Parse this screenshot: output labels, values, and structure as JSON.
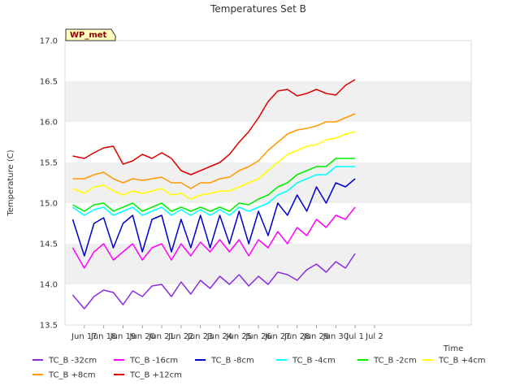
{
  "chart_data": {
    "type": "line",
    "title": "Temperatures Set B",
    "xlabel": "Time",
    "ylabel": "Temperature (C)",
    "ylim": [
      13.5,
      17.0
    ],
    "xlim": [
      0,
      21
    ],
    "yticks": [
      "13.5",
      "14.0",
      "14.5",
      "15.0",
      "15.5",
      "16.0",
      "16.5",
      "17.0"
    ],
    "xticks": [
      "Jun 17",
      "Jun 18",
      "Jun 19",
      "Jun 20",
      "Jun 21",
      "Jun 22",
      "Jun 23",
      "Jun 24",
      "Jun 25",
      "Jun 26",
      "Jun 27",
      "Jun 28",
      "Jun 29",
      "Jun 30",
      "Jul 1",
      "Jul 2"
    ],
    "xtick_positions": [
      1,
      2,
      3,
      4,
      5,
      6,
      7,
      8,
      9,
      10,
      11,
      12,
      13,
      14,
      15,
      16
    ],
    "grid": "horizontal bands",
    "annotation": "WP_met",
    "legend_position": "bottom",
    "x": [
      0.4,
      1.0,
      1.5,
      2.0,
      2.5,
      3.0,
      3.5,
      4.0,
      4.5,
      5.0,
      5.5,
      6.0,
      6.5,
      7.0,
      7.5,
      8.0,
      8.5,
      9.0,
      9.5,
      10.0,
      10.5,
      11.0,
      11.5,
      12.0,
      12.5,
      13.0,
      13.5,
      14.0,
      14.5,
      15.0
    ],
    "series": [
      {
        "name": "TC_B -32cm",
        "color": "#8a2be2",
        "values": [
          13.87,
          13.7,
          13.85,
          13.93,
          13.9,
          13.75,
          13.92,
          13.85,
          13.98,
          14.0,
          13.85,
          14.03,
          13.88,
          14.05,
          13.95,
          14.1,
          14.0,
          14.12,
          13.98,
          14.1,
          14.0,
          14.15,
          14.12,
          14.05,
          14.18,
          14.25,
          14.15,
          14.28,
          14.2,
          14.38
        ]
      },
      {
        "name": "TC_B -16cm",
        "color": "#ff00ff",
        "values": [
          14.45,
          14.2,
          14.4,
          14.5,
          14.3,
          14.4,
          14.5,
          14.3,
          14.45,
          14.5,
          14.3,
          14.5,
          14.35,
          14.52,
          14.4,
          14.55,
          14.4,
          14.55,
          14.35,
          14.55,
          14.45,
          14.65,
          14.5,
          14.7,
          14.6,
          14.8,
          14.7,
          14.85,
          14.8,
          14.95
        ]
      },
      {
        "name": "TC_B -8cm",
        "color": "#0000cd",
        "values": [
          14.8,
          14.35,
          14.75,
          14.82,
          14.45,
          14.75,
          14.85,
          14.4,
          14.8,
          14.85,
          14.4,
          14.8,
          14.45,
          14.85,
          14.45,
          14.85,
          14.5,
          14.9,
          14.5,
          14.9,
          14.6,
          15.0,
          14.85,
          15.1,
          14.9,
          15.2,
          15.0,
          15.25,
          15.2,
          15.3
        ]
      },
      {
        "name": "TC_B -4cm",
        "color": "#00ffff",
        "values": [
          14.95,
          14.85,
          14.92,
          14.95,
          14.85,
          14.9,
          14.95,
          14.85,
          14.9,
          14.95,
          14.85,
          14.92,
          14.85,
          14.92,
          14.85,
          14.92,
          14.85,
          14.95,
          14.9,
          14.95,
          15.0,
          15.1,
          15.15,
          15.25,
          15.3,
          15.35,
          15.35,
          15.45,
          15.45,
          15.45
        ]
      },
      {
        "name": "TC_B -2cm",
        "color": "#00ee00",
        "values": [
          14.98,
          14.9,
          14.98,
          15.0,
          14.9,
          14.95,
          15.0,
          14.9,
          14.95,
          15.0,
          14.9,
          14.95,
          14.9,
          14.95,
          14.9,
          14.95,
          14.9,
          15.0,
          14.98,
          15.05,
          15.1,
          15.2,
          15.25,
          15.35,
          15.4,
          15.45,
          15.45,
          15.55,
          15.55,
          15.55
        ]
      },
      {
        "name": "TC_B +4cm",
        "color": "#ffff00",
        "values": [
          15.18,
          15.12,
          15.2,
          15.22,
          15.15,
          15.1,
          15.15,
          15.12,
          15.15,
          15.18,
          15.1,
          15.12,
          15.05,
          15.1,
          15.12,
          15.15,
          15.15,
          15.2,
          15.25,
          15.3,
          15.4,
          15.5,
          15.6,
          15.65,
          15.7,
          15.72,
          15.78,
          15.8,
          15.85,
          15.88
        ]
      },
      {
        "name": "TC_B +8cm",
        "color": "#ff9900",
        "values": [
          15.3,
          15.3,
          15.35,
          15.38,
          15.3,
          15.25,
          15.3,
          15.28,
          15.3,
          15.32,
          15.25,
          15.25,
          15.18,
          15.25,
          15.25,
          15.3,
          15.32,
          15.4,
          15.45,
          15.52,
          15.65,
          15.75,
          15.85,
          15.9,
          15.92,
          15.95,
          16.0,
          16.0,
          16.05,
          16.1
        ]
      },
      {
        "name": "TC_B +12cm",
        "color": "#dd0000",
        "values": [
          15.58,
          15.55,
          15.62,
          15.68,
          15.7,
          15.48,
          15.52,
          15.6,
          15.55,
          15.62,
          15.55,
          15.4,
          15.35,
          15.4,
          15.45,
          15.5,
          15.6,
          15.75,
          15.88,
          16.05,
          16.25,
          16.38,
          16.4,
          16.32,
          16.35,
          16.4,
          16.35,
          16.33,
          16.45,
          16.52
        ]
      }
    ]
  }
}
